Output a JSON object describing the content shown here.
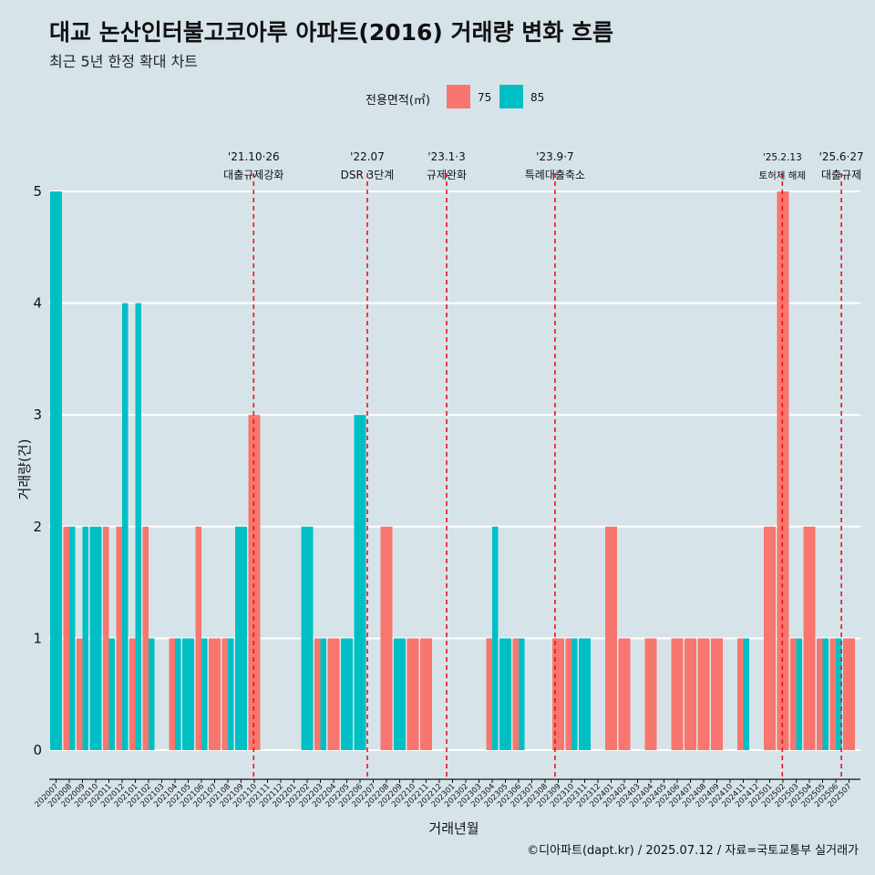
{
  "chart_data": {
    "type": "bar",
    "title": "대교 논산인터불고코아루 아파트(2016) 거래량 변화 흐름",
    "subtitle": "최근 5년 한정 확대 차트",
    "xlabel": "거래년월",
    "ylabel": "거래량(건)",
    "ylim": [
      0,
      5
    ],
    "yticks": [
      0,
      1,
      2,
      3,
      4,
      5
    ],
    "legend_title": "전용면적(㎡)",
    "legend_position": "top",
    "colors": {
      "75": "#f8766d",
      "85": "#00bfc4"
    },
    "categories": [
      "202007",
      "202008",
      "202009",
      "202010",
      "202011",
      "202012",
      "202101",
      "202102",
      "202103",
      "202104",
      "202105",
      "202106",
      "202107",
      "202108",
      "202109",
      "202110",
      "202111",
      "202112",
      "202201",
      "202202",
      "202203",
      "202204",
      "202205",
      "202206",
      "202207",
      "202208",
      "202209",
      "202210",
      "202211",
      "202212",
      "202301",
      "202302",
      "202303",
      "202304",
      "202305",
      "202306",
      "202307",
      "202308",
      "202309",
      "202310",
      "202311",
      "202312",
      "202401",
      "202402",
      "202403",
      "202404",
      "202405",
      "202406",
      "202407",
      "202408",
      "202409",
      "202410",
      "202411",
      "202412",
      "202501",
      "202502",
      "202503",
      "202504",
      "202505",
      "202506",
      "202507"
    ],
    "series": [
      {
        "name": "75",
        "values": [
          0,
          2,
          1,
          0,
          2,
          2,
          1,
          2,
          0,
          1,
          0,
          2,
          1,
          1,
          0,
          3,
          0,
          0,
          0,
          0,
          1,
          1,
          0,
          0,
          0,
          2,
          0,
          1,
          1,
          0,
          0,
          0,
          0,
          1,
          0,
          1,
          0,
          0,
          1,
          1,
          0,
          0,
          2,
          1,
          0,
          1,
          0,
          1,
          1,
          1,
          1,
          0,
          1,
          0,
          2,
          5,
          1,
          2,
          1,
          1,
          1
        ]
      },
      {
        "name": "85",
        "values": [
          5,
          2,
          2,
          2,
          1,
          4,
          4,
          1,
          0,
          1,
          1,
          1,
          0,
          1,
          2,
          0,
          0,
          0,
          0,
          2,
          1,
          0,
          1,
          3,
          0,
          0,
          1,
          0,
          0,
          0,
          0,
          0,
          0,
          2,
          1,
          1,
          0,
          0,
          0,
          1,
          1,
          0,
          0,
          0,
          0,
          0,
          0,
          0,
          0,
          0,
          0,
          0,
          1,
          0,
          0,
          0,
          1,
          0,
          1,
          1,
          0
        ]
      }
    ],
    "annotations": [
      {
        "date": "'21.10·26",
        "label": "대출규제강화",
        "category": "202110",
        "offset": 0.4
      },
      {
        "date": "'22.07",
        "label": "DSR 3단계",
        "category": "202207",
        "offset": 0.0
      },
      {
        "date": "'23.1·3",
        "label": "규제완화",
        "category": "202301",
        "offset": 0.0
      },
      {
        "date": "'23.9·7",
        "label": "특례대출축소",
        "category": "202309",
        "offset": 0.2
      },
      {
        "date": "'25.2.13",
        "label": "토허제 해제",
        "category": "202502",
        "offset": 0.4
      },
      {
        "date": "'25.6·27",
        "label": "대출규제",
        "category": "202506",
        "offset": 0.87
      }
    ]
  },
  "footer": "©디아파트(dapt.kr) / 2025.07.12 / 자료=국토교통부 실거래가"
}
